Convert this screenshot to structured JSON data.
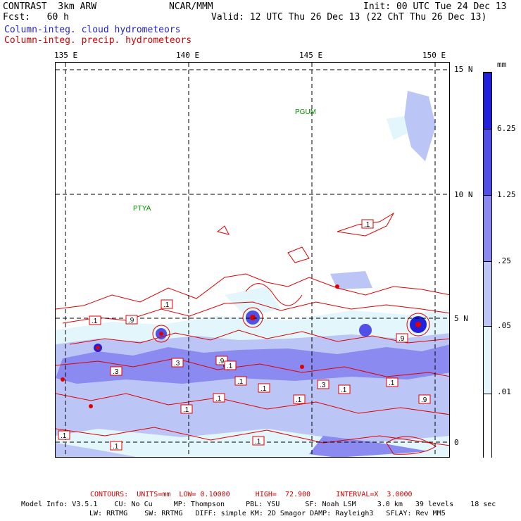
{
  "header": {
    "model": "CONTRAST  3km ARW",
    "org": "NCAR/MMM",
    "init": "Init: 00 UTC Tue 24 Dec 13",
    "fcst": "Fcst:   60 h",
    "valid": "Valid: 12 UTC Thu 26 Dec 13 (22 ChT Thu 26 Dec 13)",
    "field1": "Column-integ. cloud hydrometeors",
    "field2": "Column-integ. precip. hydrometeors"
  },
  "map": {
    "lon_labels": [
      "135 E",
      "140 E",
      "145 E",
      "150 E"
    ],
    "lat_labels": [
      "15 N",
      "10 N",
      "5 N",
      "0"
    ],
    "stations": [
      "PGUM",
      "PTYA"
    ],
    "contour_labels": [
      ".1",
      ".1",
      ".9",
      ".1",
      ".3",
      ".3",
      ".9",
      ".1",
      ".1",
      ".1",
      ".1",
      ".3",
      ".1",
      ".1",
      ".9",
      ".9",
      ".1",
      ".1",
      ".1",
      ".1",
      ".1"
    ]
  },
  "colorbar": {
    "units": "mm",
    "ticks": [
      "6.25",
      "1.25",
      ".25",
      ".05",
      ".01"
    ],
    "colors": [
      "#2020dd",
      "#5050e8",
      "#8a8af0",
      "#bcc6f6",
      "#e2f6fb",
      "#ffffff"
    ]
  },
  "footer": {
    "contours": "CONTOURS:  UNITS=mm  LOW= 0.10000      HIGH=  72.900      INTERVAL=X  3.0000",
    "info1": "Model Info: V3.5.1    CU: No Cu     MP: Thompson     PBL: YSU      SF: Noah LSM     3.0 km   39 levels    18 sec",
    "info2": "LW: RRTMG    SW: RRTMG   DIFF: simple KM: 2D Smagor DAMP: Rayleigh3   SFLAY: Rev MM5"
  }
}
